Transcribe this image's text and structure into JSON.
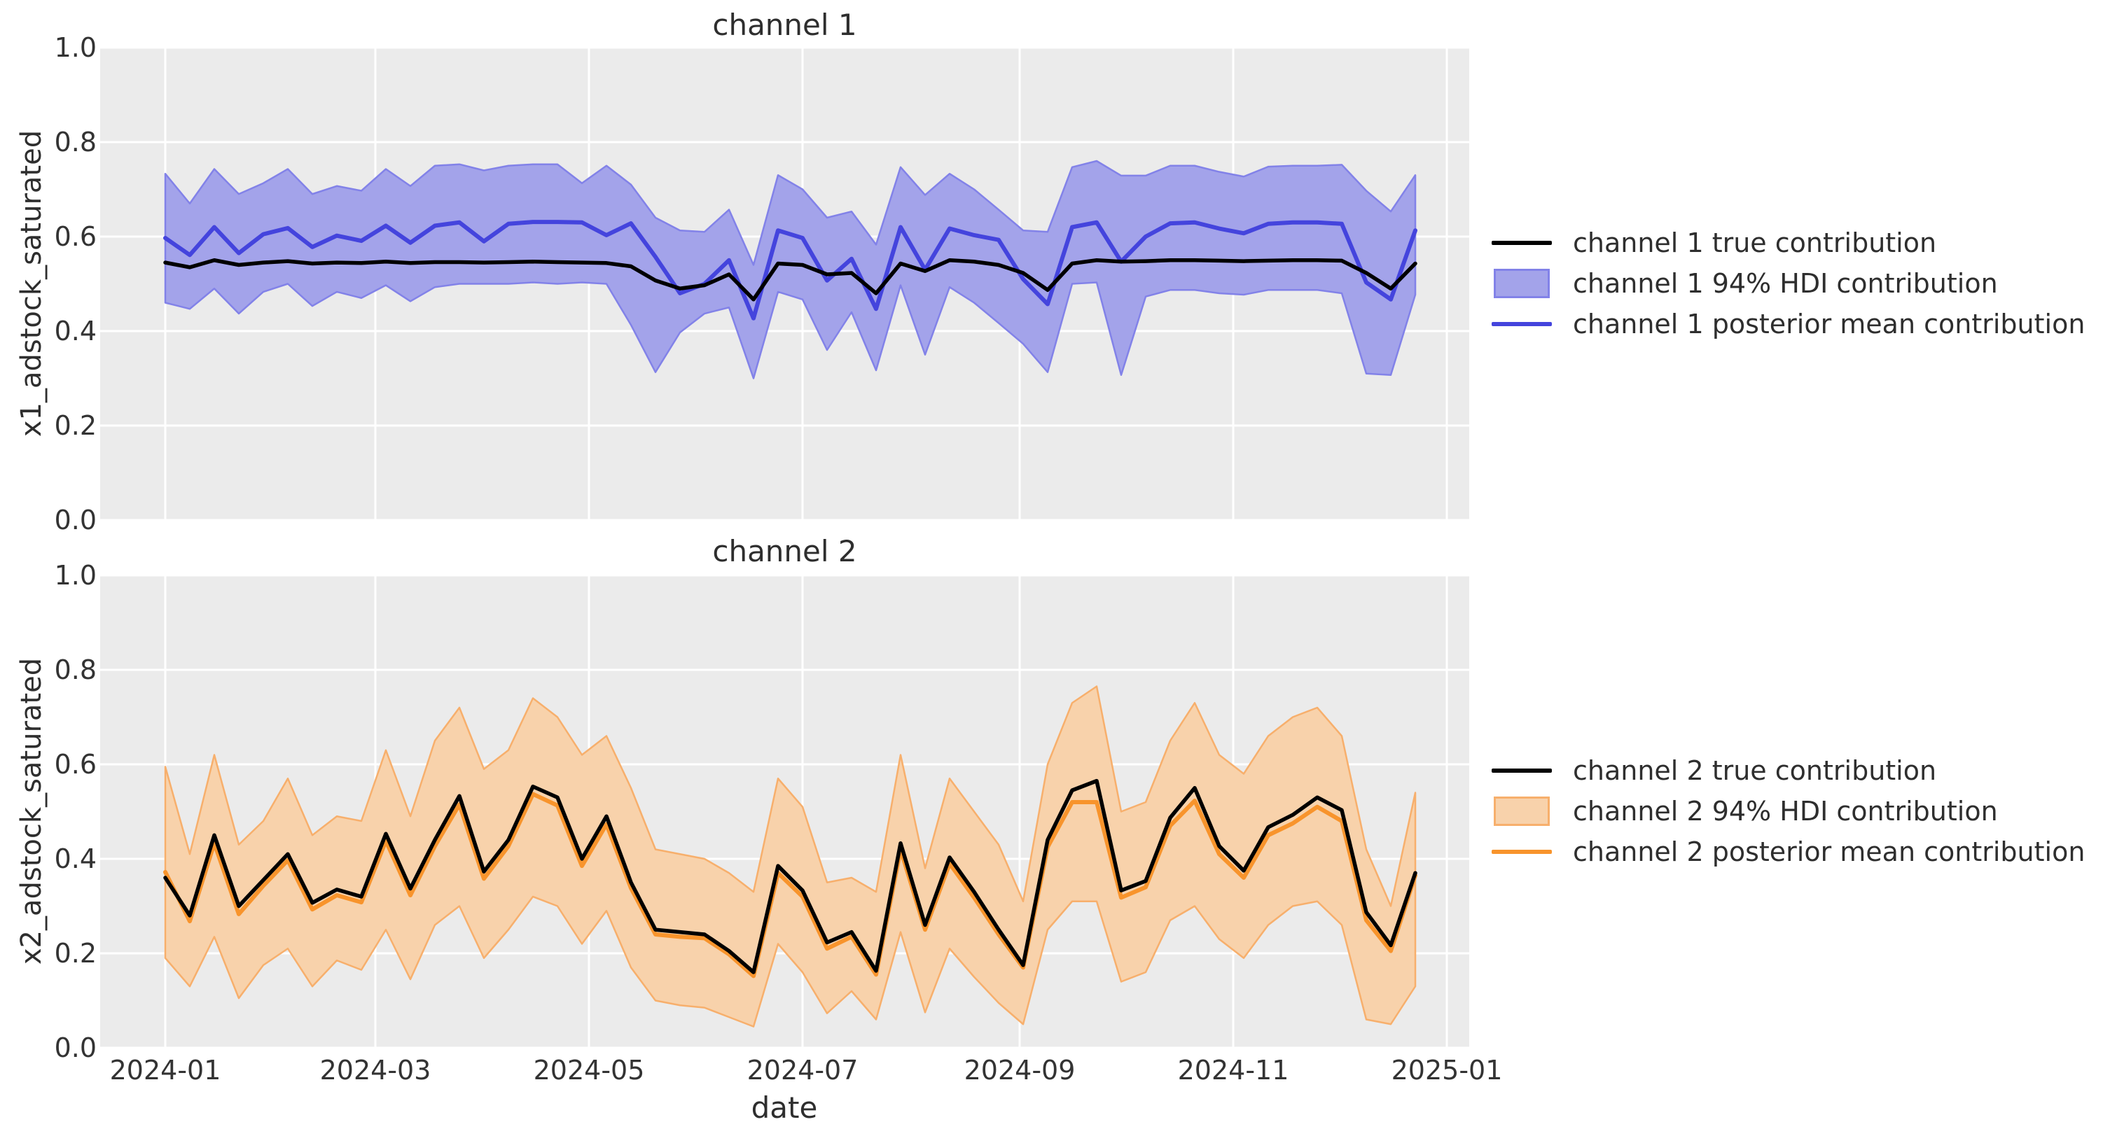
{
  "figure": {
    "xlabel": "date",
    "x_ticks": [
      {
        "label": "2024-01",
        "day": 0
      },
      {
        "label": "2024-03",
        "day": 60
      },
      {
        "label": "2024-05",
        "day": 121
      },
      {
        "label": "2024-07",
        "day": 182
      },
      {
        "label": "2024-09",
        "day": 244
      },
      {
        "label": "2024-11",
        "day": 305
      },
      {
        "label": "2025-01",
        "day": 366
      }
    ],
    "y_ticks": [
      "1.0",
      "0.8",
      "0.6",
      "0.4",
      "0.2",
      "0.0"
    ]
  },
  "colors": {
    "page_bg": "#ffffff",
    "plot_bg": "#ebebeb",
    "grid": "#ffffff",
    "text": "#2e2e2e",
    "true_line": "#000000",
    "ch1_mean": "#4444dd",
    "ch1_band_fill": "#a3a3ea",
    "ch1_band_edge": "#8282e8",
    "ch2_mean": "#f8942c",
    "ch2_band_fill": "#f8d2ab",
    "ch2_band_edge": "#f7af6c"
  },
  "chart_data": [
    {
      "type": "line",
      "title": "channel 1",
      "ylabel": "x1_adstock_saturated",
      "xlabel": "date",
      "ylim": [
        0,
        1
      ],
      "grid": true,
      "legend_position": "right",
      "x_dates": [
        "2024-01-01",
        "2024-01-08",
        "2024-01-15",
        "2024-01-22",
        "2024-01-29",
        "2024-02-05",
        "2024-02-12",
        "2024-02-19",
        "2024-02-26",
        "2024-03-04",
        "2024-03-11",
        "2024-03-18",
        "2024-03-25",
        "2024-04-01",
        "2024-04-08",
        "2024-04-15",
        "2024-04-22",
        "2024-04-29",
        "2024-05-06",
        "2024-05-13",
        "2024-05-20",
        "2024-05-27",
        "2024-06-03",
        "2024-06-10",
        "2024-06-17",
        "2024-06-24",
        "2024-07-01",
        "2024-07-08",
        "2024-07-15",
        "2024-07-22",
        "2024-07-29",
        "2024-08-05",
        "2024-08-12",
        "2024-08-19",
        "2024-08-26",
        "2024-09-02",
        "2024-09-09",
        "2024-09-16",
        "2024-09-23",
        "2024-09-30",
        "2024-10-07",
        "2024-10-14",
        "2024-10-21",
        "2024-10-28",
        "2024-11-04",
        "2024-11-11",
        "2024-11-18",
        "2024-11-25",
        "2024-12-02",
        "2024-12-09",
        "2024-12-16",
        "2024-12-23"
      ],
      "series": [
        {
          "name": "channel 1 true contribution",
          "color": "#000000",
          "values": [
            0.545,
            0.535,
            0.55,
            0.54,
            0.545,
            0.548,
            0.543,
            0.545,
            0.544,
            0.547,
            0.544,
            0.546,
            0.546,
            0.545,
            0.546,
            0.547,
            0.546,
            0.545,
            0.544,
            0.537,
            0.507,
            0.49,
            0.497,
            0.52,
            0.467,
            0.543,
            0.54,
            0.52,
            0.523,
            0.48,
            0.543,
            0.527,
            0.55,
            0.547,
            0.54,
            0.523,
            0.487,
            0.543,
            0.55,
            0.547,
            0.548,
            0.55,
            0.55,
            0.549,
            0.548,
            0.549,
            0.55,
            0.55,
            0.549,
            0.523,
            0.49,
            0.543
          ]
        },
        {
          "name": "channel 1 posterior mean contribution",
          "color": "#4444dd",
          "values": [
            0.597,
            0.561,
            0.62,
            0.565,
            0.605,
            0.618,
            0.578,
            0.602,
            0.591,
            0.623,
            0.587,
            0.623,
            0.63,
            0.59,
            0.627,
            0.631,
            0.631,
            0.63,
            0.603,
            0.628,
            0.557,
            0.48,
            0.5,
            0.55,
            0.427,
            0.613,
            0.597,
            0.507,
            0.553,
            0.447,
            0.62,
            0.53,
            0.617,
            0.603,
            0.593,
            0.51,
            0.457,
            0.62,
            0.63,
            0.547,
            0.6,
            0.628,
            0.63,
            0.617,
            0.607,
            0.627,
            0.63,
            0.63,
            0.627,
            0.503,
            0.467,
            0.613
          ]
        }
      ],
      "band": {
        "name": "channel 1 94% HDI contribution",
        "fill": "#a3a3ea",
        "edge": "#8282e8",
        "lower": [
          0.46,
          0.447,
          0.49,
          0.437,
          0.483,
          0.5,
          0.453,
          0.483,
          0.47,
          0.497,
          0.463,
          0.493,
          0.5,
          0.5,
          0.5,
          0.503,
          0.5,
          0.503,
          0.5,
          0.413,
          0.313,
          0.397,
          0.437,
          0.45,
          0.3,
          0.483,
          0.467,
          0.36,
          0.44,
          0.317,
          0.497,
          0.35,
          0.493,
          0.46,
          0.417,
          0.373,
          0.313,
          0.5,
          0.503,
          0.307,
          0.473,
          0.487,
          0.487,
          0.48,
          0.477,
          0.487,
          0.487,
          0.487,
          0.48,
          0.31,
          0.307,
          0.477
        ],
        "upper": [
          0.733,
          0.67,
          0.743,
          0.69,
          0.713,
          0.743,
          0.69,
          0.707,
          0.697,
          0.743,
          0.707,
          0.75,
          0.753,
          0.74,
          0.75,
          0.753,
          0.753,
          0.713,
          0.75,
          0.71,
          0.64,
          0.613,
          0.61,
          0.657,
          0.54,
          0.73,
          0.7,
          0.64,
          0.653,
          0.583,
          0.747,
          0.688,
          0.733,
          0.7,
          0.657,
          0.613,
          0.61,
          0.747,
          0.76,
          0.729,
          0.729,
          0.75,
          0.75,
          0.737,
          0.727,
          0.748,
          0.75,
          0.75,
          0.752,
          0.697,
          0.653,
          0.73
        ]
      }
    },
    {
      "type": "line",
      "title": "channel 2",
      "ylabel": "x2_adstock_saturated",
      "xlabel": "date",
      "ylim": [
        0,
        1
      ],
      "grid": true,
      "legend_position": "right",
      "x_dates": [
        "2024-01-01",
        "2024-01-08",
        "2024-01-15",
        "2024-01-22",
        "2024-01-29",
        "2024-02-05",
        "2024-02-12",
        "2024-02-19",
        "2024-02-26",
        "2024-03-04",
        "2024-03-11",
        "2024-03-18",
        "2024-03-25",
        "2024-04-01",
        "2024-04-08",
        "2024-04-15",
        "2024-04-22",
        "2024-04-29",
        "2024-05-06",
        "2024-05-13",
        "2024-05-20",
        "2024-05-27",
        "2024-06-03",
        "2024-06-10",
        "2024-06-17",
        "2024-06-24",
        "2024-07-01",
        "2024-07-08",
        "2024-07-15",
        "2024-07-22",
        "2024-07-29",
        "2024-08-05",
        "2024-08-12",
        "2024-08-19",
        "2024-08-26",
        "2024-09-02",
        "2024-09-09",
        "2024-09-16",
        "2024-09-23",
        "2024-09-30",
        "2024-10-07",
        "2024-10-14",
        "2024-10-21",
        "2024-10-28",
        "2024-11-04",
        "2024-11-11",
        "2024-11-18",
        "2024-11-25",
        "2024-12-02",
        "2024-12-09",
        "2024-12-16",
        "2024-12-23"
      ],
      "series": [
        {
          "name": "channel 2 true contribution",
          "color": "#000000",
          "values": [
            0.36,
            0.28,
            0.45,
            0.3,
            0.355,
            0.41,
            0.307,
            0.335,
            0.32,
            0.453,
            0.337,
            0.44,
            0.533,
            0.373,
            0.44,
            0.553,
            0.53,
            0.4,
            0.49,
            0.35,
            0.25,
            0.245,
            0.24,
            0.205,
            0.16,
            0.385,
            0.333,
            0.223,
            0.245,
            0.163,
            0.433,
            0.26,
            0.403,
            0.33,
            0.25,
            0.175,
            0.44,
            0.545,
            0.565,
            0.333,
            0.353,
            0.487,
            0.55,
            0.427,
            0.375,
            0.467,
            0.493,
            0.53,
            0.503,
            0.287,
            0.217,
            0.37
          ]
        },
        {
          "name": "channel 2 posterior mean contribution",
          "color": "#f8942c",
          "values": [
            0.372,
            0.268,
            0.433,
            0.283,
            0.343,
            0.397,
            0.293,
            0.323,
            0.308,
            0.438,
            0.323,
            0.427,
            0.515,
            0.358,
            0.427,
            0.537,
            0.513,
            0.385,
            0.473,
            0.338,
            0.24,
            0.235,
            0.232,
            0.198,
            0.152,
            0.37,
            0.32,
            0.21,
            0.235,
            0.155,
            0.42,
            0.25,
            0.39,
            0.318,
            0.24,
            0.17,
            0.425,
            0.52,
            0.52,
            0.318,
            0.34,
            0.47,
            0.523,
            0.41,
            0.36,
            0.45,
            0.475,
            0.51,
            0.48,
            0.27,
            0.205,
            0.365
          ]
        }
      ],
      "band": {
        "name": "channel 2 94% HDI contribution",
        "fill": "#f8d2ab",
        "edge": "#f7af6c",
        "lower": [
          0.19,
          0.13,
          0.235,
          0.105,
          0.175,
          0.21,
          0.13,
          0.185,
          0.165,
          0.25,
          0.145,
          0.26,
          0.3,
          0.19,
          0.25,
          0.32,
          0.3,
          0.22,
          0.29,
          0.17,
          0.1,
          0.09,
          0.085,
          0.065,
          0.045,
          0.22,
          0.16,
          0.073,
          0.12,
          0.06,
          0.245,
          0.075,
          0.21,
          0.15,
          0.095,
          0.05,
          0.25,
          0.31,
          0.31,
          0.14,
          0.16,
          0.27,
          0.3,
          0.23,
          0.19,
          0.26,
          0.3,
          0.31,
          0.26,
          0.06,
          0.05,
          0.13
        ],
        "upper": [
          0.595,
          0.41,
          0.62,
          0.43,
          0.48,
          0.57,
          0.45,
          0.49,
          0.48,
          0.63,
          0.49,
          0.65,
          0.72,
          0.59,
          0.63,
          0.74,
          0.7,
          0.62,
          0.66,
          0.55,
          0.42,
          0.41,
          0.4,
          0.37,
          0.33,
          0.57,
          0.51,
          0.35,
          0.36,
          0.33,
          0.62,
          0.38,
          0.57,
          0.5,
          0.43,
          0.31,
          0.6,
          0.73,
          0.765,
          0.5,
          0.52,
          0.65,
          0.73,
          0.62,
          0.58,
          0.66,
          0.7,
          0.72,
          0.66,
          0.42,
          0.3,
          0.54
        ]
      }
    }
  ]
}
